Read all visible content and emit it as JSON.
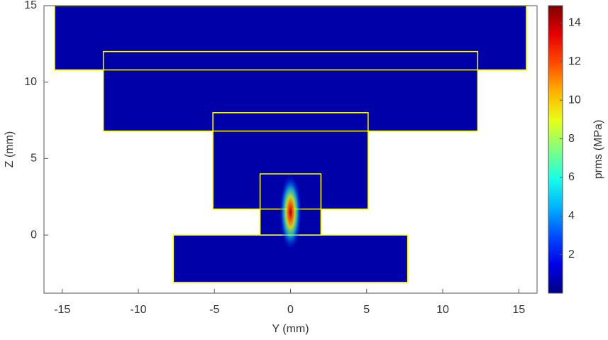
{
  "chart_data": {
    "type": "heatmap",
    "xlabel": "Y (mm)",
    "ylabel": "Z (mm)",
    "colorbar_label": "prms (MPa)",
    "xlim": [
      -16.2,
      16.2
    ],
    "xticks": [
      -15,
      -10,
      -5,
      0,
      5,
      10,
      15
    ],
    "ylim": [
      -3.8,
      15
    ],
    "yticks": [
      0,
      5,
      10,
      15
    ],
    "clim": [
      0,
      14.9
    ],
    "cticks": [
      2,
      4,
      6,
      8,
      10,
      12,
      14
    ],
    "outline_color": "#ffff00",
    "background_value": 0.6,
    "regions": [
      {
        "y0": -15.5,
        "y1": 15.5,
        "z0": 10.8,
        "z1": 15
      },
      {
        "y0": -12.3,
        "y1": 12.3,
        "z0": 6.8,
        "z1": 12
      },
      {
        "y0": -5.1,
        "y1": 5.1,
        "z0": 1.7,
        "z1": 8
      },
      {
        "y0": -2,
        "y1": 2,
        "z0": 0,
        "z1": 4
      },
      {
        "y0": -7.7,
        "y1": 7.7,
        "z0": -3.1,
        "z1": 0
      }
    ],
    "focus": {
      "y": 0,
      "z": 1.5,
      "value": 14.5
    }
  }
}
